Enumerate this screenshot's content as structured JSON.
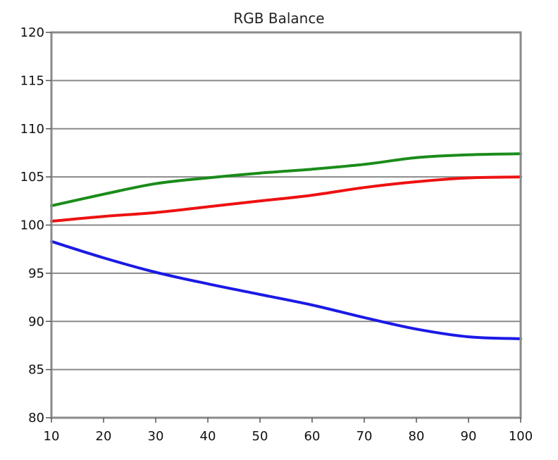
{
  "chart_data": {
    "type": "line",
    "title": "RGB Balance",
    "xlabel": "",
    "ylabel": "",
    "xlim": [
      10,
      100
    ],
    "ylim": [
      80,
      120
    ],
    "xticks": [
      10,
      20,
      30,
      40,
      50,
      60,
      70,
      80,
      90,
      100
    ],
    "yticks": [
      80,
      85,
      90,
      95,
      100,
      105,
      110,
      115,
      120
    ],
    "grid": true,
    "legend": "none",
    "series": [
      {
        "color": "#1a8c1a",
        "x": [
          10,
          20,
          30,
          40,
          50,
          60,
          70,
          80,
          90,
          100
        ],
        "values": [
          102.0,
          103.2,
          104.3,
          104.9,
          105.4,
          105.8,
          106.3,
          107.0,
          107.3,
          107.4
        ]
      },
      {
        "color": "#ee1111",
        "x": [
          10,
          20,
          30,
          40,
          50,
          60,
          70,
          80,
          90,
          100
        ],
        "values": [
          100.4,
          100.9,
          101.3,
          101.9,
          102.5,
          103.1,
          103.9,
          104.5,
          104.9,
          105.0
        ]
      },
      {
        "color": "#1a1ae6",
        "x": [
          10,
          20,
          30,
          40,
          50,
          60,
          70,
          80,
          90,
          100
        ],
        "values": [
          98.3,
          96.6,
          95.1,
          93.9,
          92.8,
          91.7,
          90.4,
          89.2,
          88.4,
          88.2
        ]
      }
    ]
  }
}
